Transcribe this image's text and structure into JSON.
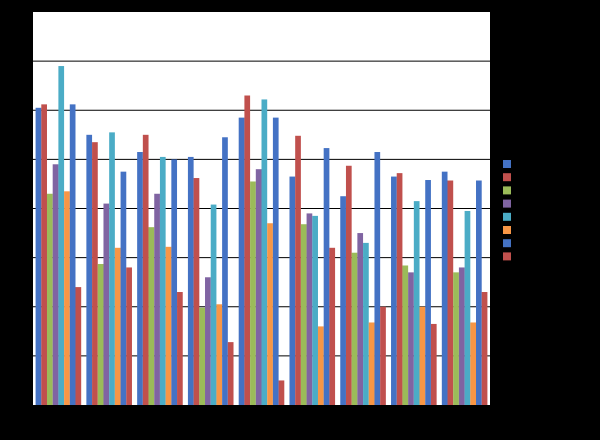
{
  "chart_data": {
    "type": "bar",
    "categories": [
      "",
      "",
      "",
      "",
      "",
      "",
      "",
      "",
      ""
    ],
    "ylim": [
      0,
      8
    ],
    "grid": true,
    "legend_position": "right",
    "background": "#000000",
    "plot_background": "#ffffff",
    "series": [
      {
        "color": "#4472C4",
        "values": [
          6.05,
          5.5,
          5.15,
          5.05,
          5.85,
          4.65,
          4.25,
          4.65,
          4.75
        ]
      },
      {
        "color": "#C0504D",
        "values": [
          6.12,
          5.35,
          5.5,
          4.62,
          6.3,
          5.48,
          4.87,
          4.72,
          4.57
        ]
      },
      {
        "color": "#9BBB59",
        "values": [
          4.3,
          2.87,
          3.62,
          1.98,
          4.55,
          3.68,
          3.1,
          2.84,
          2.7
        ]
      },
      {
        "color": "#8064A2",
        "values": [
          4.9,
          4.1,
          4.3,
          2.6,
          4.8,
          3.9,
          3.5,
          2.7,
          2.8
        ]
      },
      {
        "color": "#4BACC6",
        "values": [
          6.9,
          5.55,
          5.05,
          4.08,
          6.22,
          3.85,
          3.3,
          4.15,
          3.95
        ]
      },
      {
        "color": "#F79646",
        "values": [
          4.35,
          3.2,
          3.22,
          2.05,
          3.7,
          1.6,
          1.68,
          2.0,
          1.68
        ]
      },
      {
        "color": "#4472C4",
        "values": [
          6.12,
          4.75,
          5.0,
          5.45,
          5.85,
          5.23,
          5.15,
          4.58,
          4.57
        ]
      },
      {
        "color": "#C0504D",
        "values": [
          2.4,
          2.8,
          2.3,
          1.28,
          0.5,
          3.2,
          2.0,
          1.65,
          2.3
        ]
      }
    ]
  }
}
